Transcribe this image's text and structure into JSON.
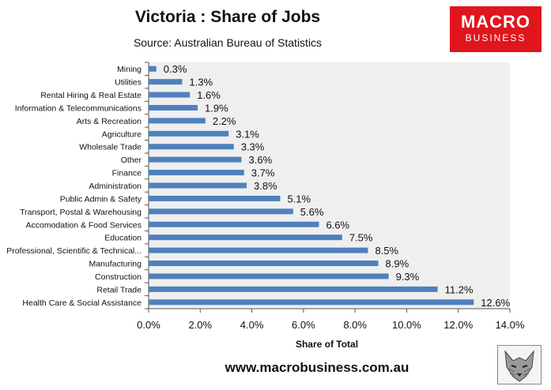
{
  "title": "Victoria : Share of Jobs",
  "subtitle": "Source: Australian Bureau of Statistics",
  "logo": {
    "line1": "MACRO",
    "line2": "BUSINESS"
  },
  "footer": "www.macrobusiness.com.au",
  "chart_data": {
    "type": "bar",
    "orientation": "horizontal",
    "xlabel": "Share of Total",
    "xlim": [
      0,
      14
    ],
    "xticks": [
      "0.0%",
      "2.0%",
      "4.0%",
      "6.0%",
      "8.0%",
      "10.0%",
      "12.0%",
      "14.0%"
    ],
    "bar_color": "#4f81bd",
    "categories": [
      "Mining",
      "Utilities",
      "Rental Hiring & Real Estate",
      "Information & Telecommunications",
      "Arts & Recreation",
      "Agriculture",
      "Wholesale Trade",
      "Other",
      "Finance",
      "Administration",
      "Public Admin & Safety",
      "Transport, Postal & Warehousing",
      "Accomodation & Food Services",
      "Education",
      "Professional, Scientific & Technical...",
      "Manufacturing",
      "Construction",
      "Retail Trade",
      "Health Care & Social Assistance"
    ],
    "values": [
      0.3,
      1.3,
      1.6,
      1.9,
      2.2,
      3.1,
      3.3,
      3.6,
      3.7,
      3.8,
      5.1,
      5.6,
      6.6,
      7.5,
      8.5,
      8.9,
      9.3,
      11.2,
      12.6
    ],
    "data_labels": [
      "0.3%",
      "1.3%",
      "1.6%",
      "1.9%",
      "2.2%",
      "3.1%",
      "3.3%",
      "3.6%",
      "3.7%",
      "3.8%",
      "5.1%",
      "5.6%",
      "6.6%",
      "7.5%",
      "8.5%",
      "8.9%",
      "9.3%",
      "11.2%",
      "12.6%"
    ]
  }
}
